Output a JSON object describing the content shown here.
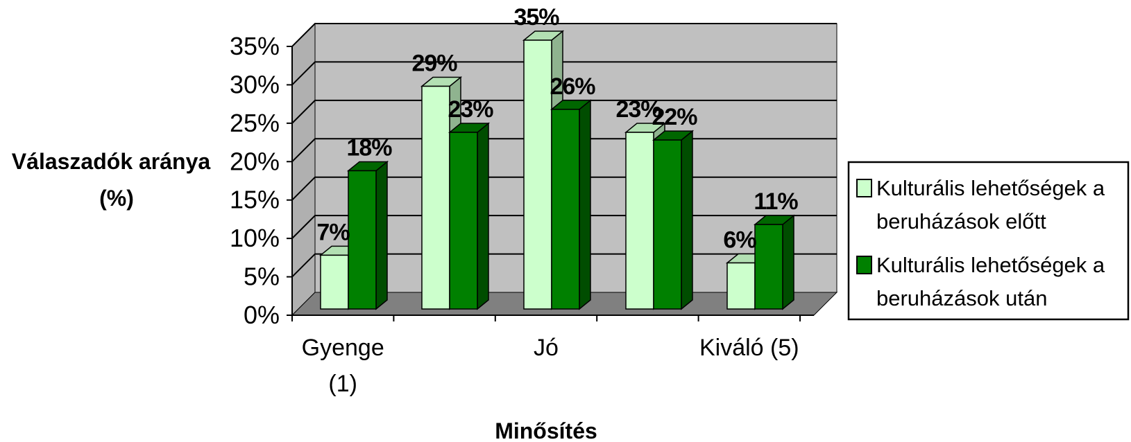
{
  "chart_data": {
    "type": "bar",
    "categories": [
      "Gyenge (1)",
      "",
      "Jó",
      "",
      "Kiváló (5)"
    ],
    "category_tick_labels": [
      [
        "Gyenge",
        "(1)"
      ],
      [],
      [
        "Jó"
      ],
      [],
      [
        "Kiváló (5)"
      ]
    ],
    "series": [
      {
        "name": "Kulturális lehetőségek a beruházások előtt",
        "legend_lines": [
          "Kulturális lehetőségek a",
          "beruházások előtt"
        ],
        "values": [
          7,
          29,
          35,
          23,
          6
        ],
        "labels": [
          "7%",
          "29%",
          "35%",
          "23%",
          "6%"
        ],
        "color": "#ccffcc",
        "side_color": "#8fb38f",
        "top_color": "#b3e0b3"
      },
      {
        "name": "Kulturális lehetőségek a beruházások után",
        "legend_lines": [
          "Kulturális lehetőségek a",
          "beruházások után"
        ],
        "values": [
          18,
          23,
          26,
          22,
          11
        ],
        "labels": [
          "18%",
          "23%",
          "26%",
          "22%",
          "11%"
        ],
        "color": "#008000",
        "side_color": "#004d00",
        "top_color": "#006600"
      }
    ],
    "y_ticks": [
      "0%",
      "5%",
      "10%",
      "15%",
      "20%",
      "25%",
      "30%",
      "35%"
    ],
    "ylim": [
      0,
      35
    ],
    "ylabel_lines": [
      "Válaszadók aránya",
      "(%)"
    ],
    "xlabel": "Minősítés",
    "title": "",
    "grid": true,
    "legend_position": "right",
    "wall_color": "#c0c0c0",
    "floor_color": "#808080"
  }
}
